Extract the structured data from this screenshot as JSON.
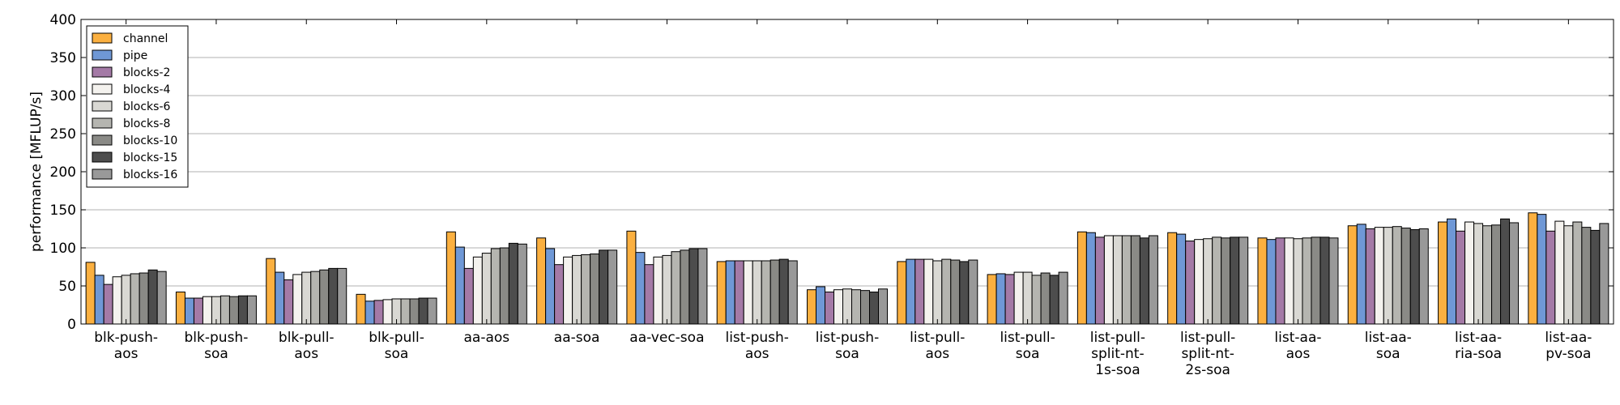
{
  "chart_data": {
    "type": "bar",
    "ylabel": "performance [MFLUP/s]",
    "xlabel": "",
    "title": "",
    "ylim": [
      0,
      400
    ],
    "yticks": [
      0,
      50,
      100,
      150,
      200,
      250,
      300,
      350,
      400
    ],
    "grid": "horizontal",
    "legend_position": "top-left",
    "categories": [
      "blk-push-\naos",
      "blk-push-\nsoa",
      "blk-pull-\naos",
      "blk-pull-\nsoa",
      "aa-aos",
      "aa-soa",
      "aa-vec-soa",
      "list-push-\naos",
      "list-push-\nsoa",
      "list-pull-\naos",
      "list-pull-\nsoa",
      "list-pull-\nsplit-nt-\n1s-soa",
      "list-pull-\nsplit-nt-\n2s-soa",
      "list-aa-\naos",
      "list-aa-\nsoa",
      "list-aa-\nria-soa",
      "list-aa-\npv-soa"
    ],
    "series": [
      {
        "name": "channel",
        "color": "#FBB040",
        "values": [
          81,
          42,
          86,
          39,
          121,
          113,
          122,
          82,
          45,
          82,
          65,
          121,
          120,
          113,
          129,
          134,
          146
        ]
      },
      {
        "name": "pipe",
        "color": "#6F98D6",
        "values": [
          64,
          34,
          68,
          30,
          101,
          99,
          94,
          83,
          49,
          85,
          66,
          120,
          118,
          111,
          131,
          138,
          144
        ]
      },
      {
        "name": "blocks-2",
        "color": "#A47AA6",
        "values": [
          52,
          34,
          58,
          31,
          73,
          78,
          78,
          83,
          42,
          85,
          65,
          114,
          109,
          113,
          125,
          122,
          122
        ]
      },
      {
        "name": "blocks-4",
        "color": "#F4F2EE",
        "values": [
          62,
          36,
          65,
          32,
          88,
          88,
          88,
          83,
          45,
          85,
          68,
          116,
          111,
          113,
          127,
          134,
          135
        ]
      },
      {
        "name": "blocks-6",
        "color": "#D9D8D3",
        "values": [
          64,
          36,
          68,
          33,
          93,
          90,
          90,
          83,
          46,
          83,
          68,
          116,
          112,
          112,
          127,
          132,
          129
        ]
      },
      {
        "name": "blocks-8",
        "color": "#B5B5B0",
        "values": [
          66,
          37,
          69,
          33,
          99,
          91,
          95,
          83,
          45,
          85,
          64,
          116,
          114,
          113,
          128,
          129,
          134
        ]
      },
      {
        "name": "blocks-10",
        "color": "#8A8A86",
        "values": [
          67,
          36,
          71,
          33,
          100,
          92,
          97,
          84,
          44,
          84,
          67,
          116,
          113,
          114,
          126,
          130,
          127
        ]
      },
      {
        "name": "blocks-15",
        "color": "#4D4D4D",
        "values": [
          71,
          37,
          73,
          34,
          106,
          97,
          99,
          85,
          42,
          82,
          64,
          113,
          114,
          114,
          124,
          138,
          123
        ]
      },
      {
        "name": "blocks-16",
        "color": "#999999",
        "values": [
          69,
          37,
          73,
          34,
          105,
          97,
          99,
          83,
          46,
          84,
          68,
          116,
          114,
          113,
          125,
          133,
          132
        ]
      }
    ]
  }
}
